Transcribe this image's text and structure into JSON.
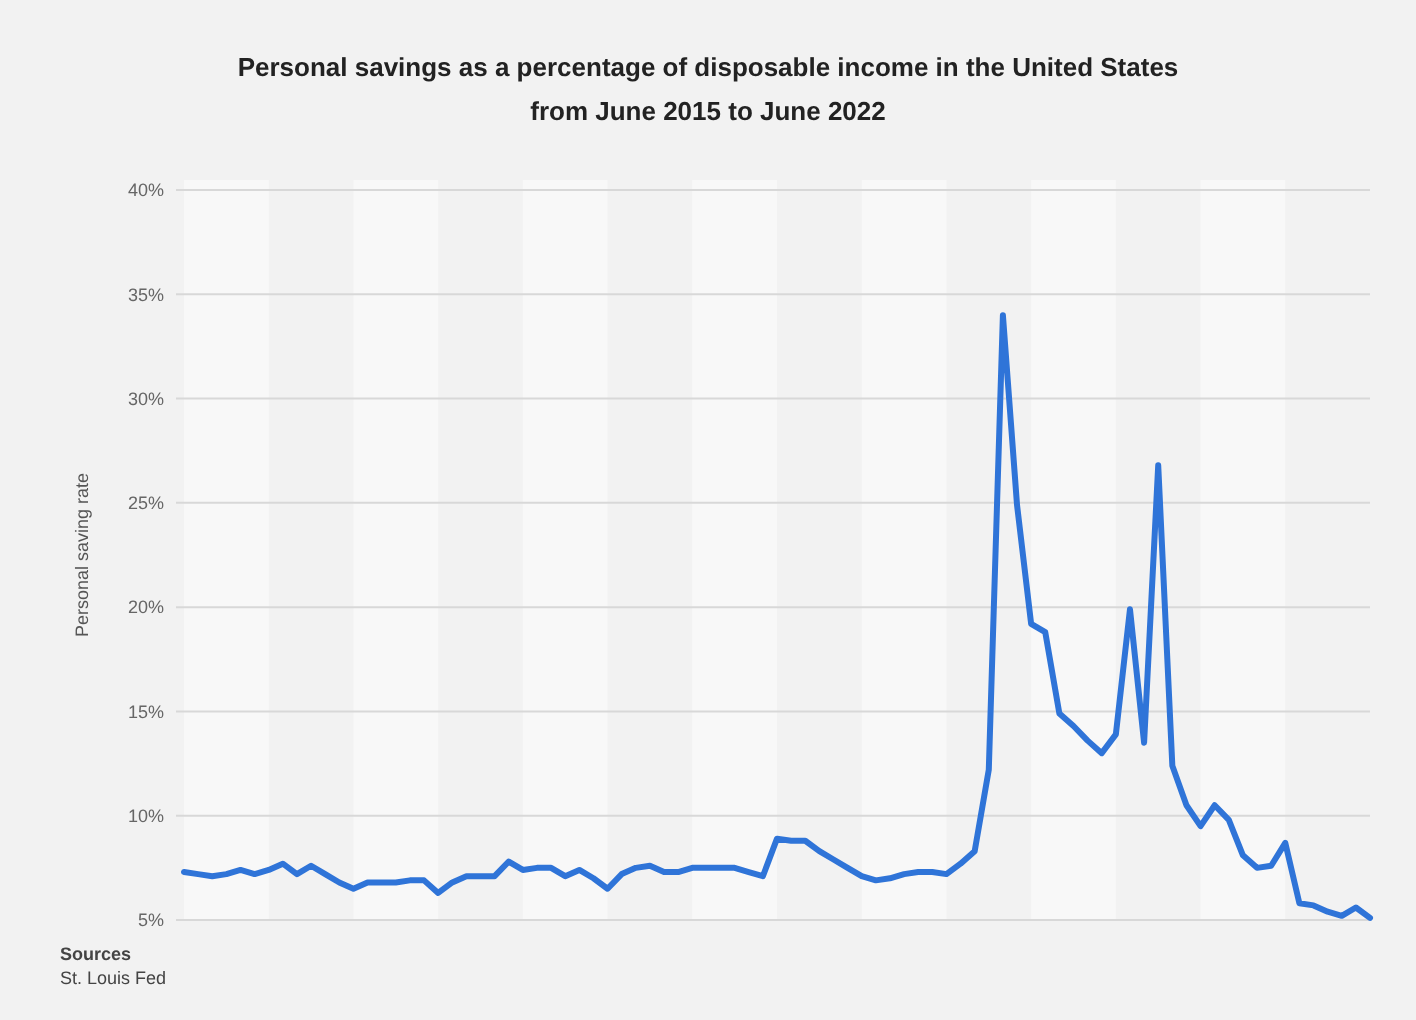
{
  "chart_data": {
    "type": "line",
    "title": "Personal savings as a percentage of disposable income in the United States from June 2015 to June 2022",
    "ylabel": "Personal saving rate",
    "categories": [
      null,
      null,
      null,
      null,
      null,
      null,
      null,
      null,
      null,
      null,
      null,
      null,
      null,
      null,
      null,
      null,
      null,
      null,
      null,
      null,
      null,
      null,
      null,
      null,
      null,
      null,
      null,
      null,
      null,
      null,
      null,
      null,
      null,
      null,
      null,
      null,
      null,
      null,
      null,
      null,
      null,
      null,
      null,
      null,
      null,
      null,
      null,
      null,
      null,
      null,
      null,
      null,
      null,
      null,
      null,
      null,
      null,
      null,
      null,
      null,
      null,
      null,
      null,
      null,
      null,
      null,
      null,
      null,
      null,
      null,
      null,
      null,
      null,
      null,
      null,
      null,
      null,
      null,
      null,
      null,
      null,
      null,
      null,
      null,
      null
    ],
    "series": [
      {
        "color": "#2f74d8",
        "values": [
          7.3,
          7.2,
          7.1,
          7.2,
          7.4,
          7.2,
          7.4,
          7.7,
          7.2,
          7.6,
          7.2,
          6.8,
          6.5,
          6.8,
          6.8,
          6.8,
          6.9,
          6.9,
          6.3,
          6.8,
          7.1,
          7.1,
          7.1,
          7.8,
          7.4,
          7.5,
          7.5,
          7.1,
          7.4,
          7.0,
          6.5,
          7.2,
          7.5,
          7.6,
          7.3,
          7.3,
          7.5,
          7.5,
          7.5,
          7.5,
          7.3,
          7.1,
          8.9,
          8.8,
          8.8,
          8.3,
          7.9,
          7.5,
          7.1,
          6.9,
          7.0,
          7.2,
          7.3,
          7.3,
          7.2,
          7.7,
          8.3,
          12.2,
          34.0,
          24.9,
          19.2,
          18.8,
          14.9,
          14.3,
          13.6,
          13.0,
          13.9,
          19.9,
          13.5,
          26.8,
          12.4,
          10.5,
          9.5,
          10.5,
          9.8,
          8.1,
          7.5,
          7.6,
          8.7,
          5.8,
          5.7,
          5.4,
          5.2,
          5.6,
          5.1
        ]
      }
    ],
    "ylim": [
      5,
      40
    ],
    "yticks": [
      {
        "value": 5,
        "label": "5%"
      },
      {
        "value": 10,
        "label": "10%"
      },
      {
        "value": 15,
        "label": "15%"
      },
      {
        "value": 20,
        "label": "20%"
      },
      {
        "value": 25,
        "label": "25%"
      },
      {
        "value": 30,
        "label": "30%"
      },
      {
        "value": 35,
        "label": "35%"
      },
      {
        "value": 40,
        "label": "40%"
      }
    ],
    "grid": "y",
    "marker": "none",
    "line_style": "solid",
    "annotations": [
      "Sources",
      "St. Louis Fed"
    ]
  }
}
